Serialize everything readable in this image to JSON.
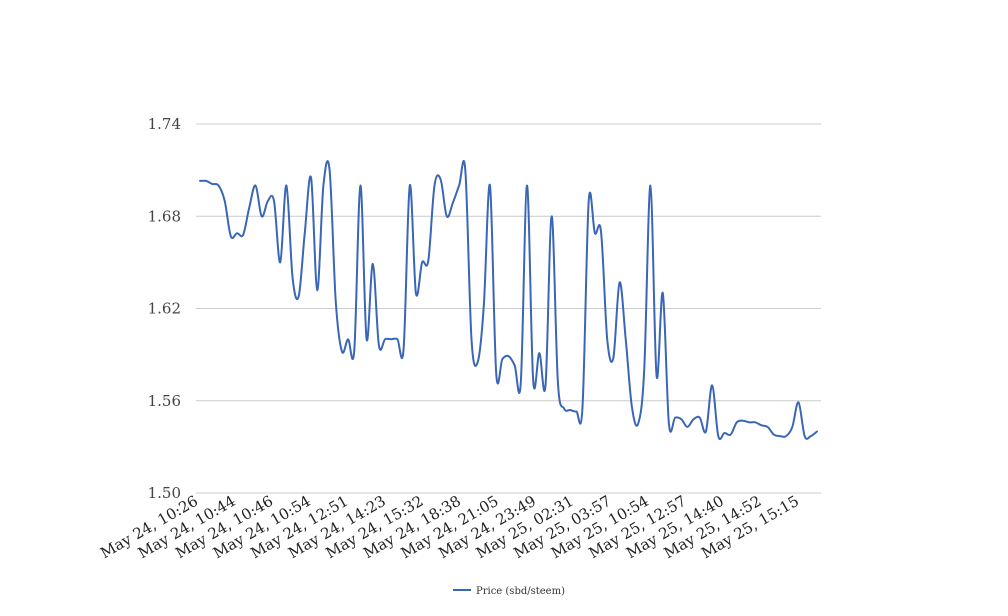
{
  "chart_data": {
    "type": "line",
    "title": "",
    "xlabel": "",
    "ylabel": "",
    "ylim": [
      1.5,
      1.74
    ],
    "yticks": [
      "1.74",
      "1.68",
      "1.62",
      "1.56",
      "1.50"
    ],
    "ytick_values": [
      1.74,
      1.68,
      1.62,
      1.56,
      1.5
    ],
    "x_tick_labels": [
      "May 24, 10:26",
      "May 24, 10:44",
      "May 24, 10:46",
      "May 24, 10:54",
      "May 24, 12:51",
      "May 24, 14:23",
      "May 24, 15:32",
      "May 24, 18:38",
      "May 24, 21:05",
      "May 24, 23:49",
      "May 25, 02:31",
      "May 25, 03:57",
      "May 25, 10:54",
      "May 25, 12:57",
      "May 25, 14:40",
      "May 25, 14:52",
      "May 25, 15:15"
    ],
    "grid": true,
    "legend_position": "bottom",
    "series": [
      {
        "name": "Price (sbd/steem)",
        "color": "#3a66b8",
        "values": [
          1.703,
          1.703,
          1.701,
          1.7,
          1.69,
          1.667,
          1.669,
          1.668,
          1.686,
          1.7,
          1.68,
          1.69,
          1.69,
          1.65,
          1.7,
          1.64,
          1.628,
          1.67,
          1.705,
          1.632,
          1.7,
          1.71,
          1.625,
          1.592,
          1.6,
          1.593,
          1.7,
          1.6,
          1.649,
          1.596,
          1.6,
          1.6,
          1.6,
          1.594,
          1.7,
          1.63,
          1.65,
          1.651,
          1.7,
          1.704,
          1.68,
          1.689,
          1.7,
          1.71,
          1.6,
          1.585,
          1.622,
          1.7,
          1.578,
          1.587,
          1.589,
          1.583,
          1.572,
          1.7,
          1.573,
          1.591,
          1.57,
          1.68,
          1.572,
          1.555,
          1.554,
          1.553,
          1.556,
          1.69,
          1.669,
          1.67,
          1.6,
          1.588,
          1.637,
          1.6,
          1.556,
          1.545,
          1.58,
          1.7,
          1.576,
          1.63,
          1.545,
          1.549,
          1.548,
          1.543,
          1.548,
          1.549,
          1.54,
          1.57,
          1.537,
          1.539,
          1.538,
          1.546,
          1.547,
          1.546,
          1.546,
          1.544,
          1.543,
          1.538,
          1.537,
          1.537,
          1.543,
          1.559,
          1.537,
          1.537,
          1.54
        ]
      }
    ]
  }
}
